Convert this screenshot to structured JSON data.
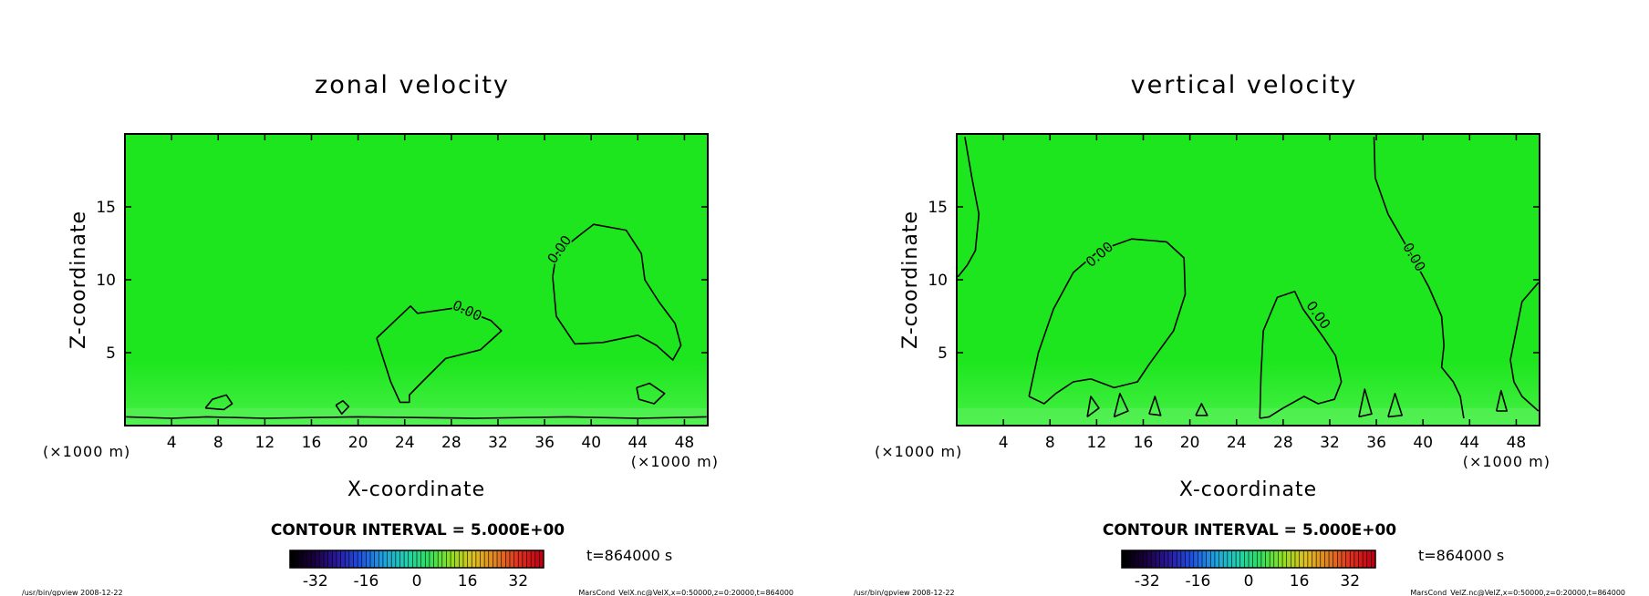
{
  "chart_data": [
    {
      "type": "contour",
      "title": "zonal velocity",
      "xlabel": "X-coordinate",
      "ylabel": "Z-coordinate",
      "x_unit": "(×1000 m)",
      "xlim": [
        0,
        50
      ],
      "ylim": [
        0,
        20
      ],
      "x_ticks": [
        4,
        8,
        12,
        16,
        20,
        24,
        28,
        32,
        36,
        40,
        44,
        48
      ],
      "y_ticks": [
        5,
        10,
        15
      ],
      "contour_labels": [
        "0.00",
        "0.00"
      ],
      "contour_interval": "CONTOUR INTERVAL = 5.000E+00",
      "colorbar": {
        "ticks": [
          -32,
          -16,
          0,
          16,
          32
        ],
        "range": [
          -40,
          40
        ]
      },
      "time_label": "t=864000 s",
      "footer_left": "/usr/bin/gpview  2008-12-22",
      "footer_right": "MarsCond_VelX.nc@VelX,x=0:50000,z=0:20000,t=864000"
    },
    {
      "type": "contour",
      "title": "vertical velocity",
      "xlabel": "X-coordinate",
      "ylabel": "Z-coordinate",
      "x_unit": "(×1000 m)",
      "xlim": [
        0,
        50
      ],
      "ylim": [
        0,
        20
      ],
      "x_ticks": [
        4,
        8,
        12,
        16,
        20,
        24,
        28,
        32,
        36,
        40,
        44,
        48
      ],
      "y_ticks": [
        5,
        10,
        15
      ],
      "contour_labels": [
        "0.00",
        "0.00",
        "0.00"
      ],
      "contour_interval": "CONTOUR INTERVAL = 5.000E+00",
      "colorbar": {
        "ticks": [
          -32,
          -16,
          0,
          16,
          32
        ],
        "range": [
          -40,
          40
        ]
      },
      "time_label": "t=864000 s",
      "footer_left": "/usr/bin/gpview  2008-12-22",
      "footer_right": "MarsCond_VelZ.nc@VelZ,x=0:50000,z=0:20000,t=864000"
    }
  ],
  "colors": {
    "field": "#1ee61e",
    "field_light": "#46f046",
    "contour": "#000000"
  }
}
